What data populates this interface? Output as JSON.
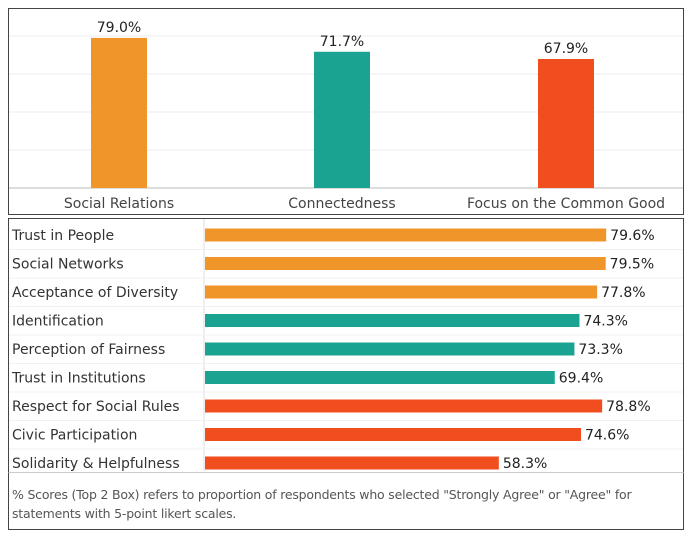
{
  "colors": {
    "orange": "#F0952A",
    "teal": "#1BA392",
    "red": "#F04E1E"
  },
  "chart_data": [
    {
      "type": "bar",
      "orientation": "vertical",
      "categories": [
        "Social Relations",
        "Connectedness",
        "Focus on the Common Good"
      ],
      "values": [
        79.0,
        71.7,
        67.9
      ],
      "data_labels": [
        "79.0%",
        "71.7%",
        "67.9%"
      ],
      "bar_colors": [
        "#F0952A",
        "#1BA392",
        "#F04E1E"
      ],
      "ylim": [
        0,
        85
      ],
      "grid": true
    },
    {
      "type": "bar",
      "orientation": "horizontal",
      "categories": [
        "Trust in People",
        "Social Networks",
        "Acceptance of Diversity",
        "Identification",
        "Perception of Fairness",
        "Trust in Institutions",
        "Respect for Social Rules",
        "Civic Participation",
        "Solidarity & Helpfulness"
      ],
      "values": [
        79.6,
        79.5,
        77.8,
        74.3,
        73.3,
        69.4,
        78.8,
        74.6,
        58.3
      ],
      "data_labels": [
        "79.6%",
        "79.5%",
        "77.8%",
        "74.3%",
        "73.3%",
        "69.4%",
        "78.8%",
        "74.6%",
        "58.3%"
      ],
      "bar_colors": [
        "#F0952A",
        "#F0952A",
        "#F0952A",
        "#1BA392",
        "#1BA392",
        "#1BA392",
        "#F04E1E",
        "#F04E1E",
        "#F04E1E"
      ],
      "xlim": [
        0,
        94
      ],
      "grid": false
    }
  ],
  "caption": "% Scores (Top 2 Box) refers to proportion of respondents who selected \"Strongly Agree\" or \"Agree\" for statements with 5-point likert scales."
}
